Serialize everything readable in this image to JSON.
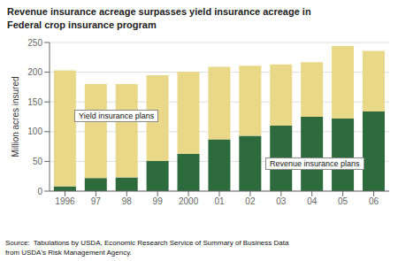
{
  "chart_data": {
    "type": "bar",
    "title": "Revenue insurance acreage surpasses yield insurance acreage in",
    "subtitle": "Federal crop insurance program",
    "source": "Source:  Tabulations by USDA, Economic Research Service of Summary of Business Data\nfrom USDA's Risk Management Agency.",
    "categories": [
      "1996",
      "97",
      "98",
      "99",
      "2000",
      "01",
      "02",
      "03",
      "04",
      "05",
      "06"
    ],
    "series": [
      {
        "name": "Revenue insurance plans",
        "color": "#2d6b3c",
        "values": [
          8,
          22,
          23,
          51,
          63,
          87,
          93,
          110,
          125,
          122,
          134
        ]
      },
      {
        "name": "Yield insurance plans",
        "color": "#e8d888",
        "values": [
          195,
          158,
          157,
          144,
          138,
          122,
          118,
          103,
          92,
          122,
          102
        ]
      }
    ],
    "stacked": true,
    "ylabel": "Million acres insured",
    "ylim": [
      0,
      250
    ],
    "yticks": [
      0,
      50,
      100,
      150,
      200,
      250
    ],
    "grid": true
  }
}
